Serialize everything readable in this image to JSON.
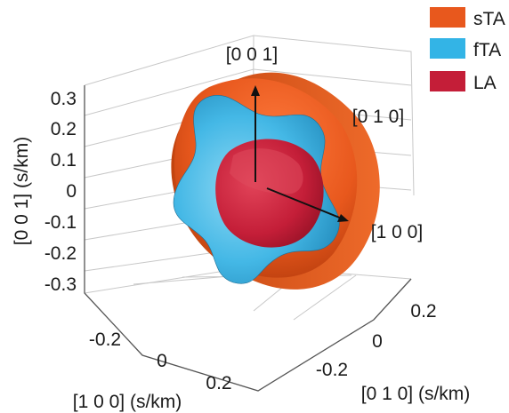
{
  "chart_data": {
    "type": "surface3d",
    "title": "",
    "x_axis": {
      "label": "[1 0 0] (s/km)",
      "ticks": [
        "-0.2",
        "0",
        "0.2"
      ]
    },
    "y_axis": {
      "label": "[0 1 0] (s/km)",
      "ticks": [
        "0.2",
        "0",
        "-0.2"
      ]
    },
    "z_axis": {
      "label": "[0 0 1] (s/km)",
      "ticks": [
        "0.3",
        "0.2",
        "0.1",
        "0",
        "-0.1",
        "-0.2",
        "-0.3"
      ]
    },
    "direction_labels": [
      "[0 0 1]",
      "[0 1 0]",
      "[1 0 0]"
    ],
    "series": [
      {
        "name": "sTA",
        "color": "#e8581d"
      },
      {
        "name": "fTA",
        "color": "#33b4e6"
      },
      {
        "name": "LA",
        "color": "#c41e38"
      }
    ],
    "legend_position": "top-right",
    "grid": true
  }
}
